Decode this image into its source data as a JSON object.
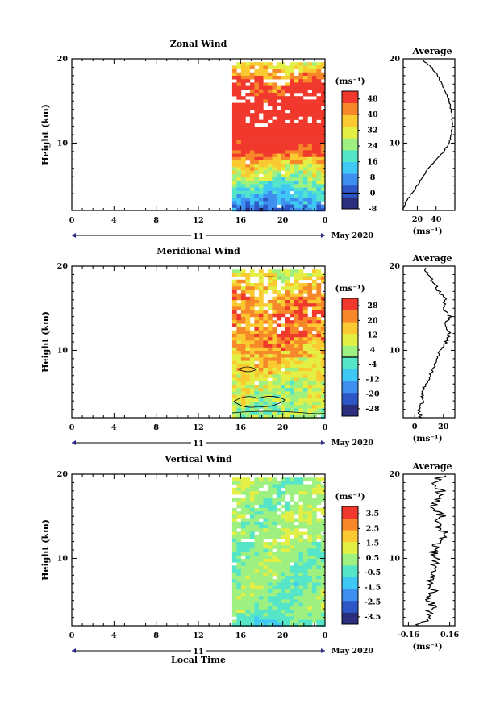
{
  "chart_data": [
    {
      "type": "heatmap",
      "title": "Zonal Wind",
      "ylabel": "Height (km)",
      "ylim": [
        2,
        20
      ],
      "yticks": [
        "10",
        "20"
      ],
      "xticks": [
        "0",
        "4",
        "8",
        "12",
        "16",
        "20",
        "0"
      ],
      "xlim": [
        0,
        24
      ],
      "data_start_hour": 15.2,
      "date_bar": {
        "day": "11",
        "month_label": "May 2020"
      },
      "colorbar": {
        "unit": "(ms⁻¹)",
        "labels": [
          "48",
          "40",
          "32",
          "24",
          "16",
          "8",
          "0",
          "-8"
        ],
        "range": [
          -8,
          52
        ],
        "contour_at": "0"
      },
      "profile_mean": [
        {
          "h": 2,
          "v": 4
        },
        {
          "h": 3,
          "v": 8
        },
        {
          "h": 4,
          "v": 14
        },
        {
          "h": 5,
          "v": 20
        },
        {
          "h": 6,
          "v": 26
        },
        {
          "h": 7,
          "v": 32
        },
        {
          "h": 8,
          "v": 40
        },
        {
          "h": 9,
          "v": 48
        },
        {
          "h": 10,
          "v": 54
        },
        {
          "h": 11,
          "v": 56
        },
        {
          "h": 12,
          "v": 57
        },
        {
          "h": 13,
          "v": 57
        },
        {
          "h": 14,
          "v": 56
        },
        {
          "h": 15,
          "v": 54
        },
        {
          "h": 16,
          "v": 50
        },
        {
          "h": 17,
          "v": 46
        },
        {
          "h": 18,
          "v": 42
        },
        {
          "h": 19,
          "v": 35
        },
        {
          "h": 19.5,
          "v": 30
        },
        {
          "h": 19.8,
          "v": 26
        }
      ],
      "profile": {
        "title": "Average",
        "xticks": [
          "20",
          "40"
        ],
        "xlim": [
          5,
          60
        ],
        "unit": "(ms⁻¹)"
      }
    },
    {
      "type": "heatmap",
      "title": "Meridional Wind",
      "ylabel": "Height (km)",
      "ylim": [
        2,
        20
      ],
      "yticks": [
        "10",
        "20"
      ],
      "xticks": [
        "0",
        "4",
        "8",
        "12",
        "16",
        "20",
        "0"
      ],
      "xlim": [
        0,
        24
      ],
      "data_start_hour": 15.2,
      "date_bar": {
        "day": "11",
        "month_label": "May 2020"
      },
      "colorbar": {
        "unit": "(ms⁻¹)",
        "labels": [
          "28",
          "20",
          "12",
          "4",
          "-4",
          "-12",
          "-20",
          "-28"
        ],
        "range": [
          -32,
          32
        ],
        "contour_at": "0"
      },
      "profile_mean": [
        {
          "h": 2,
          "v": 4
        },
        {
          "h": 3,
          "v": 3
        },
        {
          "h": 4,
          "v": 6
        },
        {
          "h": 5,
          "v": 5
        },
        {
          "h": 6,
          "v": 8
        },
        {
          "h": 7,
          "v": 11
        },
        {
          "h": 8,
          "v": 14
        },
        {
          "h": 9,
          "v": 15
        },
        {
          "h": 10,
          "v": 18
        },
        {
          "h": 11,
          "v": 22
        },
        {
          "h": 12,
          "v": 24
        },
        {
          "h": 13,
          "v": 21
        },
        {
          "h": 14,
          "v": 25
        },
        {
          "h": 15,
          "v": 19
        },
        {
          "h": 16,
          "v": 22
        },
        {
          "h": 17,
          "v": 17
        },
        {
          "h": 18,
          "v": 13
        },
        {
          "h": 19,
          "v": 10
        },
        {
          "h": 19.8,
          "v": 7
        }
      ],
      "profile": {
        "title": "Average",
        "xticks": [
          "0",
          "20"
        ],
        "xlim": [
          -8,
          28
        ],
        "unit": "(ms⁻¹)"
      }
    },
    {
      "type": "heatmap",
      "title": "Vertical Wind",
      "ylabel": "Height (km)",
      "xlabel": "Local Time",
      "ylim": [
        2,
        20
      ],
      "yticks": [
        "10",
        "20"
      ],
      "xticks": [
        "0",
        "4",
        "8",
        "12",
        "16",
        "20",
        "0"
      ],
      "xlim": [
        0,
        24
      ],
      "data_start_hour": 15.2,
      "date_bar": {
        "day": "11",
        "month_label": "May 2020"
      },
      "colorbar": {
        "unit": "(ms⁻¹)",
        "labels": [
          "3.5",
          "2.5",
          "1.5",
          "0.5",
          "-0.5",
          "-1.5",
          "-2.5",
          "-3.5"
        ],
        "range": [
          -4,
          4
        ]
      },
      "profile_mean": [
        {
          "h": 2,
          "v": -0.08
        },
        {
          "h": 3,
          "v": -0.02
        },
        {
          "h": 4,
          "v": 0.03
        },
        {
          "h": 5,
          "v": 0.01
        },
        {
          "h": 6,
          "v": 0.04
        },
        {
          "h": 7,
          "v": 0.0
        },
        {
          "h": 8,
          "v": 0.05
        },
        {
          "h": 9,
          "v": 0.02
        },
        {
          "h": 10,
          "v": 0.06
        },
        {
          "h": 11,
          "v": 0.03
        },
        {
          "h": 12,
          "v": 0.08
        },
        {
          "h": 13,
          "v": 0.12
        },
        {
          "h": 14,
          "v": 0.06
        },
        {
          "h": 15,
          "v": 0.1
        },
        {
          "h": 16,
          "v": 0.04
        },
        {
          "h": 17,
          "v": 0.07
        },
        {
          "h": 18,
          "v": 0.09
        },
        {
          "h": 19,
          "v": 0.05
        },
        {
          "h": 19.8,
          "v": 0.1
        }
      ],
      "profile": {
        "title": "Average",
        "xticks": [
          "-0.16",
          "0.16"
        ],
        "xlim": [
          -0.2,
          0.2
        ],
        "unit": "(ms⁻¹)"
      }
    }
  ],
  "colors": {
    "scale": [
      "#2b2d7d",
      "#2d57c6",
      "#3f8ff0",
      "#3fc8f3",
      "#55e6c9",
      "#9ef080",
      "#e4ef45",
      "#fbc930",
      "#f7882a",
      "#f0382c"
    ],
    "contour": "#000000",
    "missing": "#ffffff"
  }
}
